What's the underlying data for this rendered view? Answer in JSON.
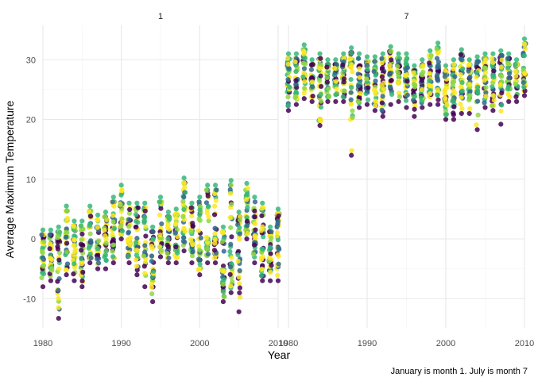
{
  "chart_data": {
    "type": "scatter",
    "facet_by": "month",
    "panels": [
      {
        "label": "1",
        "series": [
          {
            "x": [
              1980,
              1981,
              1982,
              1983,
              1984,
              1985,
              1986,
              1987,
              1988,
              1989,
              1990,
              1991,
              1992,
              1993,
              1994,
              1995,
              1996,
              1997,
              1998,
              1999,
              2000,
              2001,
              2002,
              2003,
              2004,
              2005,
              2006,
              2007,
              2008,
              2009,
              2010
            ],
            "y_mean": [
              -3,
              -3,
              -3,
              0,
              -2,
              -3,
              0,
              -1,
              0,
              0,
              3,
              0,
              -1,
              0,
              -5,
              1,
              -1,
              -1,
              2,
              0,
              -2,
              0,
              0,
              -5,
              -4,
              0,
              3,
              1,
              -1,
              -3,
              0
            ],
            "y_min": [
              -8,
              -7,
              -13.3,
              -6,
              -7,
              -8,
              -4,
              -5,
              -5,
              -4,
              0,
              -4,
              -6,
              -8,
              -10.5,
              -3,
              -4,
              -4,
              -2,
              -4,
              -6,
              -4,
              -4,
              -10.5,
              -9,
              -12.2,
              0,
              -4,
              -7,
              -7,
              -7
            ],
            "y_max": [
              1.5,
              1.5,
              2,
              5.5,
              3,
              3,
              5.5,
              4,
              4.5,
              7,
              9,
              6,
              6,
              6,
              2,
              7,
              4.5,
              5,
              10.2,
              6,
              7,
              9,
              9,
              2,
              9.8,
              4.5,
              9.3,
              7,
              6,
              2,
              5
            ]
          }
        ]
      },
      {
        "label": "7",
        "series": [
          {
            "x": [
              1980,
              1981,
              1982,
              1983,
              1984,
              1985,
              1986,
              1987,
              1988,
              1989,
              1990,
              1991,
              1992,
              1993,
              1994,
              1995,
              1996,
              1997,
              1998,
              1999,
              2000,
              2001,
              2002,
              2003,
              2004,
              2005,
              2006,
              2007,
              2008,
              2009,
              2010
            ],
            "y_mean": [
              27,
              27,
              28,
              27,
              26,
              27,
              27,
              27,
              28,
              26,
              27,
              26,
              26,
              28,
              28,
              27,
              26,
              27,
              27,
              28,
              25,
              25,
              26,
              26,
              26,
              27,
              27,
              28,
              27,
              27,
              28
            ],
            "y_min": [
              21.5,
              22.5,
              23.5,
              23,
              19,
              23,
              23,
              23,
              14,
              22,
              22.5,
              21.5,
              20.5,
              22.5,
              23,
              22,
              20.5,
              22,
              22.5,
              22.5,
              20,
              20,
              21,
              21,
              18.3,
              22,
              21.5,
              19.2,
              23,
              23,
              24
            ],
            "y_max": [
              31,
              31,
              32.5,
              30,
              31,
              30,
              30,
              31,
              32,
              31,
              30.5,
              30.5,
              31,
              32.2,
              31,
              31,
              29,
              30,
              31.5,
              32.8,
              29,
              30,
              31.7,
              30,
              30.5,
              31,
              31,
              31.5,
              31,
              30,
              33.5
            ]
          }
        ]
      }
    ],
    "xlabel": "Year",
    "ylabel": "Average Maximum Temperature",
    "caption": "January is month 1. July is month 7",
    "xlim": [
      1980,
      2010
    ],
    "ylim": [
      -15,
      35
    ],
    "x_ticks": [
      "1980",
      "1990",
      "2000",
      "2010"
    ],
    "y_ticks": [
      "-10",
      "0",
      "10",
      "20",
      "30"
    ],
    "grid": true,
    "legend": "none",
    "colors": [
      "#440154",
      "#31688e",
      "#35b779",
      "#90d743",
      "#fde725"
    ]
  }
}
